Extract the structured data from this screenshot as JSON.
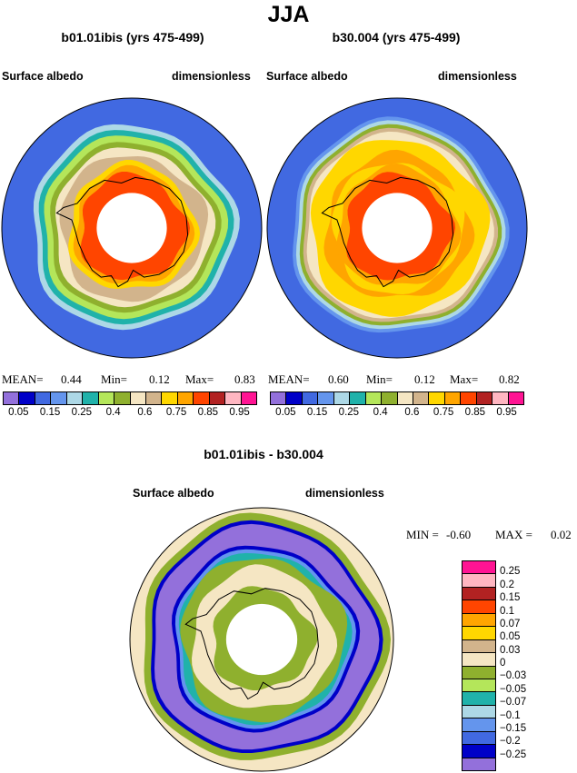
{
  "figure": {
    "season": "JJA",
    "panel_left": {
      "title": "b01.01ibis (yrs 475-499)",
      "variable": "Surface albedo",
      "units": "dimensionless",
      "stats": {
        "mean_label": "MEAN=",
        "mean": "0.44",
        "min_label": "Min=",
        "min": "0.12",
        "max_label": "Max=",
        "max": "0.83"
      }
    },
    "panel_right": {
      "title": "b30.004 (yrs 475-499)",
      "variable": "Surface albedo",
      "units": "dimensionless",
      "stats": {
        "mean_label": "MEAN=",
        "mean": "0.60",
        "min_label": "Min=",
        "min": "0.12",
        "max_label": "Max=",
        "max": "0.82"
      }
    },
    "panel_diff": {
      "title": "b01.01ibis - b30.004",
      "variable": "Surface albedo",
      "units": "dimensionless",
      "stats": {
        "min_label": "MIN =",
        "min": "-0.60",
        "max_label": "MAX =",
        "max": "0.02"
      }
    }
  },
  "chart_data": [
    {
      "type": "heatmap",
      "title": "b01.01ibis (yrs 475-499)",
      "projection": "south polar stereographic",
      "legend_levels": [
        0.05,
        0.15,
        0.25,
        0.4,
        0.6,
        0.75,
        0.85,
        0.95
      ],
      "legend_tick_labels": [
        "0.05",
        "0.15",
        "0.25",
        "0.4",
        "0.6",
        "0.75",
        "0.85",
        "0.95"
      ],
      "colors": [
        "#9370db",
        "#0000c8",
        "#4169e1",
        "#6495ed",
        "#add8e6",
        "#20b2aa",
        "#b4e65a",
        "#8fb02e",
        "#f5e6c3",
        "#d2b48c",
        "#ffd700",
        "#ffa500",
        "#ff4500",
        "#b22222",
        "#ffb6c1",
        "#ff1493"
      ],
      "ocean_value_approx": 0.15,
      "sea_ice_edge_values": [
        0.25,
        0.4,
        0.6
      ],
      "continent_values": [
        0.75,
        0.85
      ],
      "mean": 0.44,
      "min": 0.12,
      "max": 0.83
    },
    {
      "type": "heatmap",
      "title": "b30.004 (yrs 475-499)",
      "projection": "south polar stereographic",
      "legend_levels": [
        0.05,
        0.15,
        0.25,
        0.4,
        0.6,
        0.75,
        0.85,
        0.95
      ],
      "legend_tick_labels": [
        "0.05",
        "0.15",
        "0.25",
        "0.4",
        "0.6",
        "0.75",
        "0.85",
        "0.95"
      ],
      "colors": [
        "#9370db",
        "#0000c8",
        "#4169e1",
        "#6495ed",
        "#add8e6",
        "#20b2aa",
        "#b4e65a",
        "#8fb02e",
        "#f5e6c3",
        "#d2b48c",
        "#ffd700",
        "#ffa500",
        "#ff4500",
        "#b22222",
        "#ffb6c1",
        "#ff1493"
      ],
      "ocean_value_approx": 0.15,
      "sea_ice_values": [
        0.75,
        0.85
      ],
      "continent_values": [
        0.75,
        0.85
      ],
      "mean": 0.6,
      "min": 0.12,
      "max": 0.82
    },
    {
      "type": "heatmap",
      "title": "b01.01ibis - b30.004",
      "projection": "south polar stereographic",
      "legend_levels": [
        0.25,
        0.2,
        0.15,
        0.1,
        0.07,
        0.05,
        0.03,
        0,
        -0.03,
        -0.05,
        -0.07,
        -0.1,
        -0.15,
        -0.2,
        -0.25
      ],
      "legend_tick_labels": [
        "0.25",
        "0.2",
        "0.15",
        "0.1",
        "0.07",
        "0.05",
        "0.03",
        "0",
        "−0.03",
        "−0.05",
        "−0.07",
        "−0.1",
        "−0.15",
        "−0.2",
        "−0.25"
      ],
      "colors": [
        "#ff1493",
        "#ffb6c1",
        "#b22222",
        "#ff4500",
        "#ffa500",
        "#ffd700",
        "#d2b48c",
        "#f5e6c3",
        "#8fb02e",
        "#b4e65a",
        "#20b2aa",
        "#add8e6",
        "#6495ed",
        "#4169e1",
        "#0000c8",
        "#9370db"
      ],
      "sea_ice_zone_value_approx": -0.25,
      "mid_latitude_value_approx": 0.0,
      "min": -0.6,
      "max": 0.02
    }
  ]
}
